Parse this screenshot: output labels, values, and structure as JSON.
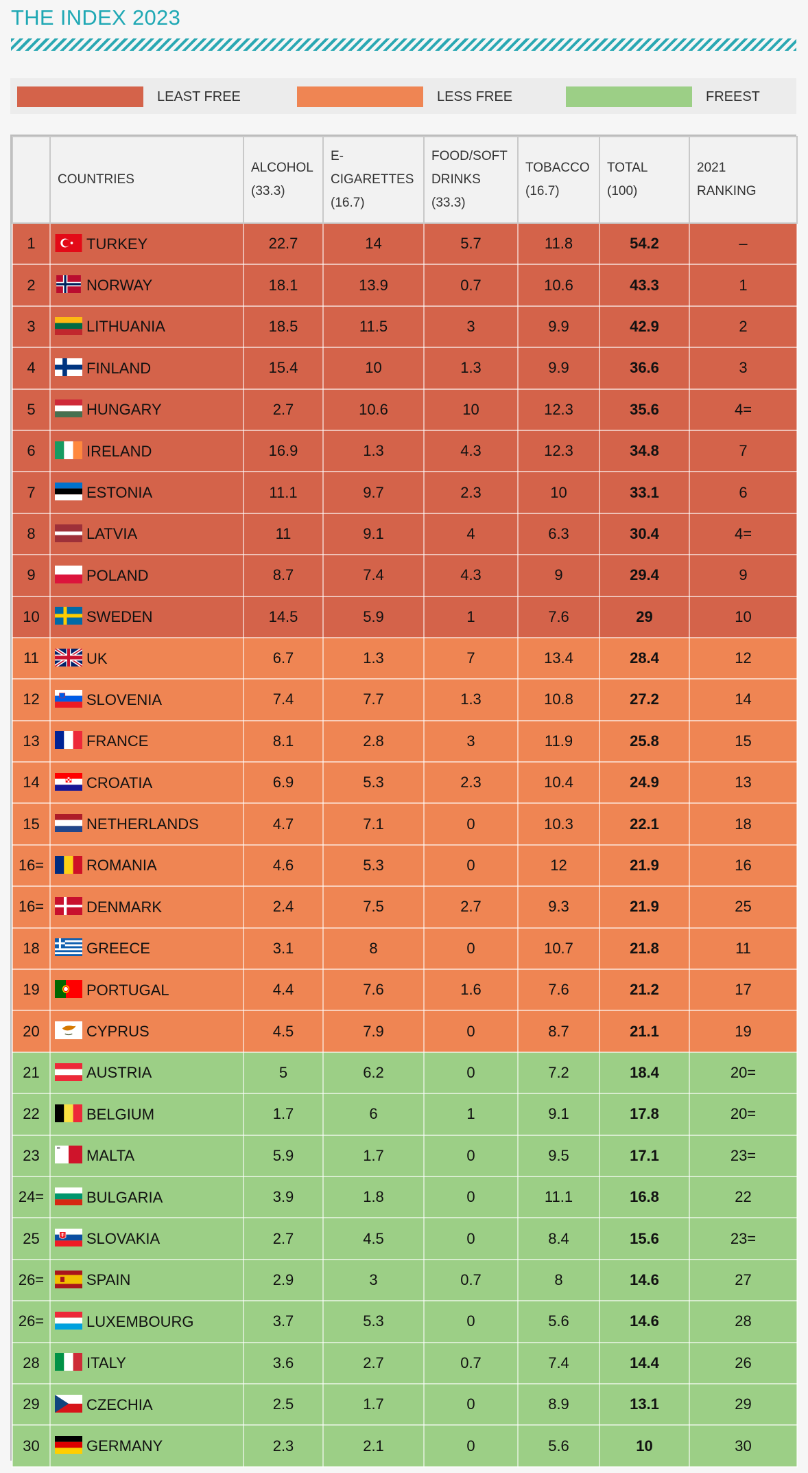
{
  "title": "THE INDEX 2023",
  "legend": {
    "least_free": {
      "label": "LEAST FREE",
      "color": "#d4634a"
    },
    "less_free": {
      "label": "LESS FREE",
      "color": "#ef8553"
    },
    "freest": {
      "label": "FREEST",
      "color": "#9ccf86"
    }
  },
  "table": {
    "headers": {
      "rank": "",
      "countries": "COUNTRIES",
      "alcohol": [
        "ALCOHOL",
        "(33.3)"
      ],
      "ecig": [
        "E-",
        "CIGARETTES",
        "(16.7)"
      ],
      "food": [
        "FOOD/SOFT",
        "DRINKS",
        "(33.3)"
      ],
      "tobacco": [
        "TOBACCO",
        "(16.7)"
      ],
      "total": [
        "TOTAL",
        "(100)"
      ],
      "ranking2021": [
        "2021",
        "RANKING"
      ]
    },
    "rows": [
      {
        "rank": "1",
        "country": "TURKEY",
        "flag": "turkey",
        "alcohol": "22.7",
        "ecig": "14",
        "food": "5.7",
        "tobacco": "11.8",
        "total": "54.2",
        "r2021": "–",
        "group": "least"
      },
      {
        "rank": "2",
        "country": "NORWAY",
        "flag": "norway",
        "alcohol": "18.1",
        "ecig": "13.9",
        "food": "0.7",
        "tobacco": "10.6",
        "total": "43.3",
        "r2021": "1",
        "group": "least"
      },
      {
        "rank": "3",
        "country": "LITHUANIA",
        "flag": "lithuania",
        "alcohol": "18.5",
        "ecig": "11.5",
        "food": "3",
        "tobacco": "9.9",
        "total": "42.9",
        "r2021": "2",
        "group": "least"
      },
      {
        "rank": "4",
        "country": "FINLAND",
        "flag": "finland",
        "alcohol": "15.4",
        "ecig": "10",
        "food": "1.3",
        "tobacco": "9.9",
        "total": "36.6",
        "r2021": "3",
        "group": "least"
      },
      {
        "rank": "5",
        "country": "HUNGARY",
        "flag": "hungary",
        "alcohol": "2.7",
        "ecig": "10.6",
        "food": "10",
        "tobacco": "12.3",
        "total": "35.6",
        "r2021": "4=",
        "group": "least"
      },
      {
        "rank": "6",
        "country": "IRELAND",
        "flag": "ireland",
        "alcohol": "16.9",
        "ecig": "1.3",
        "food": "4.3",
        "tobacco": "12.3",
        "total": "34.8",
        "r2021": "7",
        "group": "least"
      },
      {
        "rank": "7",
        "country": "ESTONIA",
        "flag": "estonia",
        "alcohol": "11.1",
        "ecig": "9.7",
        "food": "2.3",
        "tobacco": "10",
        "total": "33.1",
        "r2021": "6",
        "group": "least"
      },
      {
        "rank": "8",
        "country": "LATVIA",
        "flag": "latvia",
        "alcohol": "11",
        "ecig": "9.1",
        "food": "4",
        "tobacco": "6.3",
        "total": "30.4",
        "r2021": "4=",
        "group": "least"
      },
      {
        "rank": "9",
        "country": "POLAND",
        "flag": "poland",
        "alcohol": "8.7",
        "ecig": "7.4",
        "food": "4.3",
        "tobacco": "9",
        "total": "29.4",
        "r2021": "9",
        "group": "least"
      },
      {
        "rank": "10",
        "country": "SWEDEN",
        "flag": "sweden",
        "alcohol": "14.5",
        "ecig": "5.9",
        "food": "1",
        "tobacco": "7.6",
        "total": "29",
        "r2021": "10",
        "group": "least"
      },
      {
        "rank": "11",
        "country": "UK",
        "flag": "uk",
        "alcohol": "6.7",
        "ecig": "1.3",
        "food": "7",
        "tobacco": "13.4",
        "total": "28.4",
        "r2021": "12",
        "group": "less"
      },
      {
        "rank": "12",
        "country": "SLOVENIA",
        "flag": "slovenia",
        "alcohol": "7.4",
        "ecig": "7.7",
        "food": "1.3",
        "tobacco": "10.8",
        "total": "27.2",
        "r2021": "14",
        "group": "less"
      },
      {
        "rank": "13",
        "country": "FRANCE",
        "flag": "france",
        "alcohol": "8.1",
        "ecig": "2.8",
        "food": "3",
        "tobacco": "11.9",
        "total": "25.8",
        "r2021": "15",
        "group": "less"
      },
      {
        "rank": "14",
        "country": "CROATIA",
        "flag": "croatia",
        "alcohol": "6.9",
        "ecig": "5.3",
        "food": "2.3",
        "tobacco": "10.4",
        "total": "24.9",
        "r2021": "13",
        "group": "less"
      },
      {
        "rank": "15",
        "country": "NETHERLANDS",
        "flag": "netherlands",
        "alcohol": "4.7",
        "ecig": "7.1",
        "food": "0",
        "tobacco": "10.3",
        "total": "22.1",
        "r2021": "18",
        "group": "less"
      },
      {
        "rank": "16=",
        "country": "ROMANIA",
        "flag": "romania",
        "alcohol": "4.6",
        "ecig": "5.3",
        "food": "0",
        "tobacco": "12",
        "total": "21.9",
        "r2021": "16",
        "group": "less"
      },
      {
        "rank": "16=",
        "country": "DENMARK",
        "flag": "denmark",
        "alcohol": "2.4",
        "ecig": "7.5",
        "food": "2.7",
        "tobacco": "9.3",
        "total": "21.9",
        "r2021": "25",
        "group": "less"
      },
      {
        "rank": "18",
        "country": "GREECE",
        "flag": "greece",
        "alcohol": "3.1",
        "ecig": "8",
        "food": "0",
        "tobacco": "10.7",
        "total": "21.8",
        "r2021": "11",
        "group": "less"
      },
      {
        "rank": "19",
        "country": "PORTUGAL",
        "flag": "portugal",
        "alcohol": "4.4",
        "ecig": "7.6",
        "food": "1.6",
        "tobacco": "7.6",
        "total": "21.2",
        "r2021": "17",
        "group": "less"
      },
      {
        "rank": "20",
        "country": "CYPRUS",
        "flag": "cyprus",
        "alcohol": "4.5",
        "ecig": "7.9",
        "food": "0",
        "tobacco": "8.7",
        "total": "21.1",
        "r2021": "19",
        "group": "less"
      },
      {
        "rank": "21",
        "country": "AUSTRIA",
        "flag": "austria",
        "alcohol": "5",
        "ecig": "6.2",
        "food": "0",
        "tobacco": "7.2",
        "total": "18.4",
        "r2021": "20=",
        "group": "freest"
      },
      {
        "rank": "22",
        "country": "BELGIUM",
        "flag": "belgium",
        "alcohol": "1.7",
        "ecig": "6",
        "food": "1",
        "tobacco": "9.1",
        "total": "17.8",
        "r2021": "20=",
        "group": "freest"
      },
      {
        "rank": "23",
        "country": "MALTA",
        "flag": "malta",
        "alcohol": "5.9",
        "ecig": "1.7",
        "food": "0",
        "tobacco": "9.5",
        "total": "17.1",
        "r2021": "23=",
        "group": "freest"
      },
      {
        "rank": "24=",
        "country": "BULGARIA",
        "flag": "bulgaria",
        "alcohol": "3.9",
        "ecig": "1.8",
        "food": "0",
        "tobacco": "11.1",
        "total": "16.8",
        "r2021": "22",
        "group": "freest"
      },
      {
        "rank": "25",
        "country": "SLOVAKIA",
        "flag": "slovakia",
        "alcohol": "2.7",
        "ecig": "4.5",
        "food": "0",
        "tobacco": "8.4",
        "total": "15.6",
        "r2021": "23=",
        "group": "freest"
      },
      {
        "rank": "26=",
        "country": "SPAIN",
        "flag": "spain",
        "alcohol": "2.9",
        "ecig": "3",
        "food": "0.7",
        "tobacco": "8",
        "total": "14.6",
        "r2021": "27",
        "group": "freest"
      },
      {
        "rank": "26=",
        "country": "LUXEMBOURG",
        "flag": "luxembourg",
        "alcohol": "3.7",
        "ecig": "5.3",
        "food": "0",
        "tobacco": "5.6",
        "total": "14.6",
        "r2021": "28",
        "group": "freest"
      },
      {
        "rank": "28",
        "country": "ITALY",
        "flag": "italy",
        "alcohol": "3.6",
        "ecig": "2.7",
        "food": "0.7",
        "tobacco": "7.4",
        "total": "14.4",
        "r2021": "26",
        "group": "freest"
      },
      {
        "rank": "29",
        "country": "CZECHIA",
        "flag": "czechia",
        "alcohol": "2.5",
        "ecig": "1.7",
        "food": "0",
        "tobacco": "8.9",
        "total": "13.1",
        "r2021": "29",
        "group": "freest"
      },
      {
        "rank": "30",
        "country": "GERMANY",
        "flag": "germany",
        "alcohol": "2.3",
        "ecig": "2.1",
        "food": "0",
        "tobacco": "5.6",
        "total": "10",
        "r2021": "30",
        "group": "freest"
      }
    ]
  }
}
